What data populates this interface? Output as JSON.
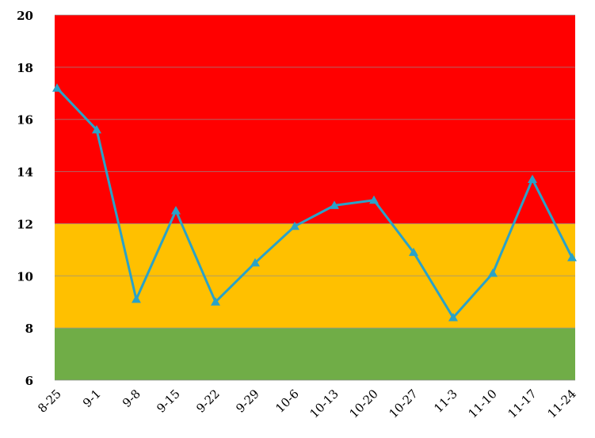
{
  "chart_data": {
    "type": "line",
    "title": "",
    "xlabel": "",
    "ylabel": "",
    "categories": [
      "8-25",
      "9-1",
      "9-8",
      "9-15",
      "9-22",
      "9-29",
      "10-6",
      "10-13",
      "10-20",
      "10-27",
      "11-3",
      "11-10",
      "11-17",
      "11-24"
    ],
    "series": [
      {
        "values": [
          17.2,
          15.6,
          9.1,
          12.5,
          9.0,
          10.5,
          11.9,
          12.7,
          12.9,
          10.9,
          8.4,
          10.1,
          13.7,
          10.7
        ],
        "color": "#2aa2c8",
        "marker": "triangle"
      }
    ],
    "ylim": [
      6,
      20
    ],
    "yticks": [
      "6",
      "8",
      "10",
      "12",
      "14",
      "16",
      "18",
      "20"
    ],
    "bands": [
      {
        "from": 6,
        "to": 8,
        "color": "#70ad47"
      },
      {
        "from": 8,
        "to": 12,
        "color": "#ffc000"
      },
      {
        "from": 12,
        "to": 20,
        "color": "#ff0000"
      }
    ],
    "grid": true,
    "legend": "none"
  }
}
